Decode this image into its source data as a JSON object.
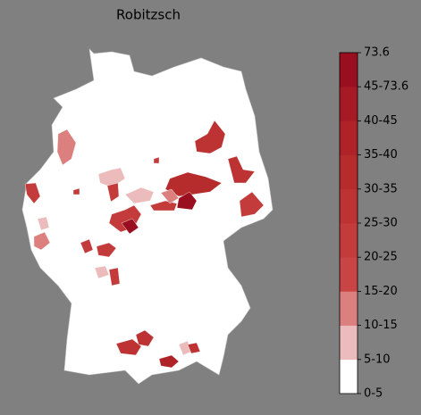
{
  "title": "Robitzsch",
  "colorbar": {
    "labels": [
      "73.6",
      "45-73.6",
      "40-45",
      "35-40",
      "30-35",
      "25-30",
      "20-25",
      "15-20",
      "10-15",
      "5-10",
      "0-5"
    ],
    "colors": [
      "#ffffff",
      "#ecbcbc",
      "#dc7f7f",
      "#c94444",
      "#c43b3b",
      "#bd3333",
      "#b62b2b",
      "#ae2228",
      "#a51a24",
      "#9a0f1f"
    ]
  }
}
